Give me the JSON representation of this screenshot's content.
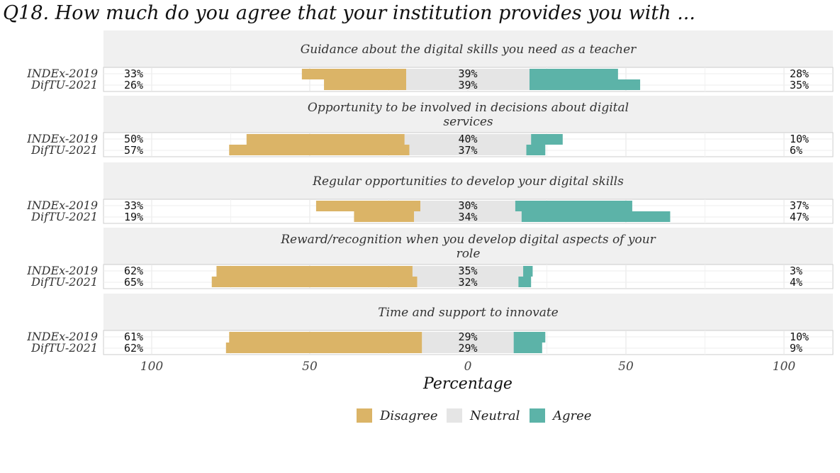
{
  "chart_data": {
    "type": "bar",
    "orientation": "horizontal-diverging",
    "title": "Q18. How much do you agree that your institution provides you with ...",
    "xlabel": "Percentage",
    "xlim": [
      -100,
      100
    ],
    "x_ticks": [
      -100,
      -50,
      0,
      50,
      100
    ],
    "x_tick_labels": [
      "100",
      "50",
      "0",
      "50",
      "100"
    ],
    "grid": true,
    "legend_position": "bottom",
    "legend": [
      "Disagree",
      "Neutral",
      "Agree"
    ],
    "colors": {
      "Disagree": "#dbb467",
      "Neutral": "#e5e5e5",
      "Agree": "#5cb3a8"
    },
    "series_order": [
      "INDEx-2019",
      "DifTU-2021"
    ],
    "facets": [
      {
        "title": [
          "Guidance about the digital skills you need as a teacher"
        ],
        "rows": [
          {
            "label": "INDEx-2019",
            "disagree": 33,
            "neutral": 39,
            "agree": 28,
            "disagree_label": "33%",
            "neutral_label": "39%",
            "agree_label": "28%"
          },
          {
            "label": "DifTU-2021",
            "disagree": 26,
            "neutral": 39,
            "agree": 35,
            "disagree_label": "26%",
            "neutral_label": "39%",
            "agree_label": "35%"
          }
        ]
      },
      {
        "title": [
          "Opportunity to be involved in decisions about digital",
          "services"
        ],
        "rows": [
          {
            "label": "INDEx-2019",
            "disagree": 50,
            "neutral": 40,
            "agree": 10,
            "disagree_label": "50%",
            "neutral_label": "40%",
            "agree_label": "10%"
          },
          {
            "label": "DifTU-2021",
            "disagree": 57,
            "neutral": 37,
            "agree": 6,
            "disagree_label": "57%",
            "neutral_label": "37%",
            "agree_label": "6%"
          }
        ]
      },
      {
        "title": [
          "Regular opportunities to develop your digital skills"
        ],
        "rows": [
          {
            "label": "INDEx-2019",
            "disagree": 33,
            "neutral": 30,
            "agree": 37,
            "disagree_label": "33%",
            "neutral_label": "30%",
            "agree_label": "37%"
          },
          {
            "label": "DifTU-2021",
            "disagree": 19,
            "neutral": 34,
            "agree": 47,
            "disagree_label": "19%",
            "neutral_label": "34%",
            "agree_label": "47%"
          }
        ]
      },
      {
        "title": [
          "Reward/recognition when you develop digital aspects of your",
          "role"
        ],
        "rows": [
          {
            "label": "INDEx-2019",
            "disagree": 62,
            "neutral": 35,
            "agree": 3,
            "disagree_label": "62%",
            "neutral_label": "35%",
            "agree_label": "3%"
          },
          {
            "label": "DifTU-2021",
            "disagree": 65,
            "neutral": 32,
            "agree": 4,
            "disagree_label": "65%",
            "neutral_label": "32%",
            "agree_label": "4%"
          }
        ]
      },
      {
        "title": [
          "Time and support to innovate"
        ],
        "rows": [
          {
            "label": "INDEx-2019",
            "disagree": 61,
            "neutral": 29,
            "agree": 10,
            "disagree_label": "61%",
            "neutral_label": "29%",
            "agree_label": "10%"
          },
          {
            "label": "DifTU-2021",
            "disagree": 62,
            "neutral": 29,
            "agree": 9,
            "disagree_label": "62%",
            "neutral_label": "29%",
            "agree_label": "9%"
          }
        ]
      }
    ]
  }
}
